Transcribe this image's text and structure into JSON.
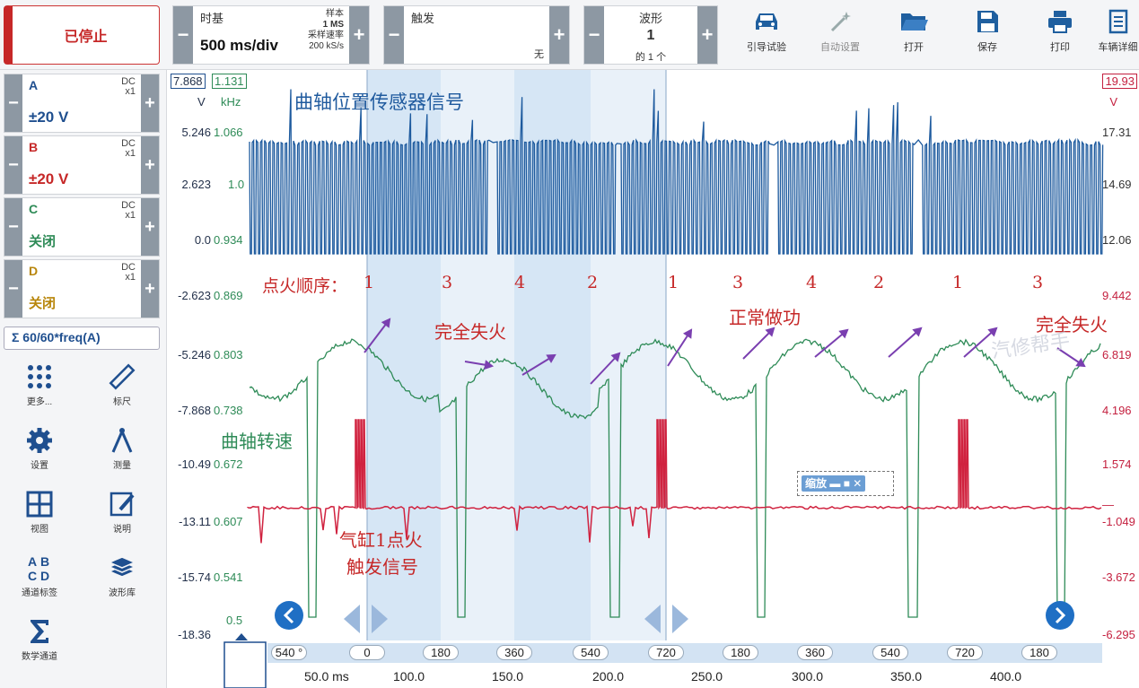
{
  "toolbar": {
    "stop_label": "已停止",
    "timebase": {
      "title": "时基",
      "value": "500 ms/div",
      "samples_label": "样本",
      "samples_value": "1 MS",
      "rate_label": "采样速率",
      "rate_value": "200 kS/s"
    },
    "trigger": {
      "title": "触发",
      "mode": "无"
    },
    "waveform": {
      "title": "波形",
      "index": "1",
      "count": "的 1 个"
    },
    "buttons": [
      {
        "label": "引导试验",
        "icon": "car-icon"
      },
      {
        "label": "自动设置",
        "icon": "magic-wand-icon"
      },
      {
        "label": "打开",
        "icon": "folder-open-icon"
      },
      {
        "label": "保存",
        "icon": "floppy-disk-icon"
      },
      {
        "label": "打印",
        "icon": "printer-icon"
      },
      {
        "label": "车辆详细",
        "icon": "document-icon"
      }
    ]
  },
  "channels": [
    {
      "name": "A",
      "coupling": "DC",
      "probe": "x1",
      "range": "±20 V",
      "color": "#1f4f8f"
    },
    {
      "name": "B",
      "coupling": "DC",
      "probe": "x1",
      "range": "±20 V",
      "color": "#c62828"
    },
    {
      "name": "C",
      "coupling": "DC",
      "probe": "x1",
      "range": "关闭",
      "color": "#2e8b57"
    },
    {
      "name": "D",
      "coupling": "DC",
      "probe": "x1",
      "range": "关闭",
      "color": "#b8860b"
    }
  ],
  "math_channel": "60/60*freq(A)",
  "tools": [
    {
      "label": "更多...",
      "icon": "grid-dots-icon"
    },
    {
      "label": "标尺",
      "icon": "ruler-icon"
    },
    {
      "label": "设置",
      "icon": "gear-icon"
    },
    {
      "label": "测量",
      "icon": "compass-icon"
    },
    {
      "label": "视图",
      "icon": "view-grid-icon"
    },
    {
      "label": "说明",
      "icon": "note-edit-icon"
    },
    {
      "label": "通道标签",
      "icon": "abcd-icon"
    },
    {
      "label": "波形库",
      "icon": "layers-icon"
    },
    {
      "label": "数学通道",
      "icon": "sigma-icon"
    }
  ],
  "plot": {
    "axis_badges": {
      "left_a": "7.868",
      "left_b": "1.131",
      "right": "19.93"
    },
    "left_units": {
      "volt": "V",
      "freq": "kHz",
      "right": "V"
    },
    "left_axis": [
      "5.246",
      "2.623",
      "0.0",
      "-2.623",
      "-5.246",
      "-7.868",
      "-10.49",
      "-13.11",
      "-15.74",
      "-18.36"
    ],
    "freq_axis": [
      "1.066",
      "1.0",
      "0.934",
      "0.869",
      "0.803",
      "0.738",
      "0.672",
      "0.607",
      "0.541"
    ],
    "right_axis": [
      "17.31",
      "14.69",
      "12.06",
      "9.442",
      "6.819",
      "4.196",
      "1.574",
      "—",
      "-1.049",
      "-3.672",
      "-6.295"
    ],
    "annotations": {
      "crank_signal": "曲轴位置传感器信号",
      "firing_order_label": "点火顺序：",
      "firing_order": [
        "1",
        "3",
        "4",
        "2",
        "1",
        "3",
        "4",
        "2",
        "1",
        "3"
      ],
      "misfire_1": "完全失火",
      "normal": "正常做功",
      "misfire_2": "完全失火",
      "crank_speed": "曲轴转速",
      "trigger_line1": "气缸1点火",
      "trigger_line2": "触发信号",
      "watermark": "汽修帮手"
    },
    "zoom_label": "缩放",
    "trigger_level": "0.5",
    "angle_ruler": [
      "540 °",
      "0",
      "180",
      "360",
      "540",
      "720",
      "180",
      "360",
      "540",
      "720",
      "180"
    ],
    "time_axis": [
      "50.0 ms",
      "100.0",
      "150.0",
      "200.0",
      "250.0",
      "300.0",
      "350.0",
      "400.0"
    ]
  }
}
